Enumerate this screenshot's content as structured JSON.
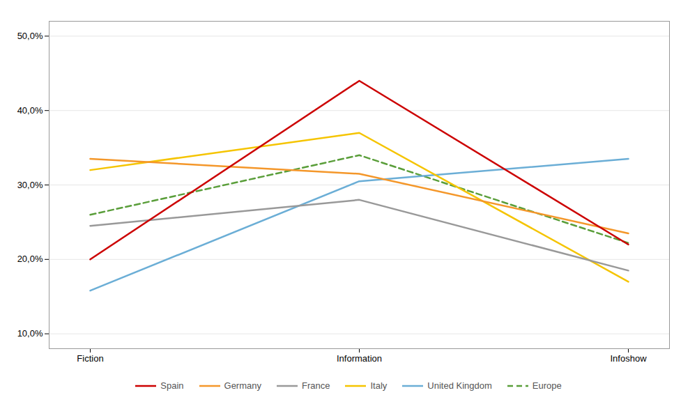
{
  "chart_data": {
    "type": "line",
    "categories": [
      "Fiction",
      "Information",
      "Infoshow"
    ],
    "series": [
      {
        "name": "Spain",
        "color": "#cc0000",
        "values": [
          0.2,
          0.44,
          0.22
        ]
      },
      {
        "name": "Germany",
        "color": "#f4972a",
        "values": [
          0.335,
          0.315,
          0.235
        ]
      },
      {
        "name": "France",
        "color": "#999999",
        "values": [
          0.245,
          0.28,
          0.185
        ]
      },
      {
        "name": "Italy",
        "color": "#f5c400",
        "values": [
          0.32,
          0.37,
          0.17
        ]
      },
      {
        "name": "United Kingdom",
        "color": "#6baed6",
        "values": [
          0.158,
          0.305,
          0.335
        ]
      },
      {
        "name": "Europe",
        "color": "#5a9e3a",
        "line_style": "dashed",
        "values": [
          0.26,
          0.34,
          0.222
        ]
      }
    ],
    "ylim": [
      0.08,
      0.52
    ],
    "yticks": [
      {
        "value": 0.1,
        "label": "10,0%"
      },
      {
        "value": 0.2,
        "label": "20,0%"
      },
      {
        "value": 0.3,
        "label": "30,0%"
      },
      {
        "value": 0.4,
        "label": "40,0%"
      },
      {
        "value": 0.5,
        "label": "50,0%"
      }
    ],
    "grid": true,
    "legend": "bottom"
  }
}
